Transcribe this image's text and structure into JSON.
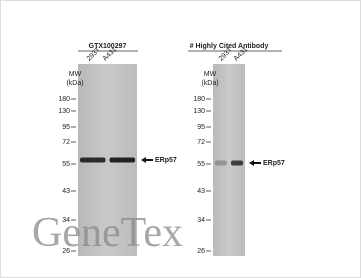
{
  "panels": [
    {
      "title": "GTX100297",
      "lanes": [
        "293T",
        "A431"
      ],
      "mw_label": [
        "MW",
        "(kDa)"
      ],
      "markers": [
        180,
        130,
        95,
        72,
        55,
        43,
        34,
        26
      ],
      "band_label": "ERp57"
    },
    {
      "title": "# Highly Cited Antibody",
      "lanes": [
        "293T",
        "A431"
      ],
      "mw_label": [
        "MW",
        "(kDa)"
      ],
      "markers": [
        180,
        130,
        95,
        72,
        55,
        43,
        34,
        26
      ],
      "band_label": "ERp57"
    }
  ],
  "watermark": "GeneTex"
}
